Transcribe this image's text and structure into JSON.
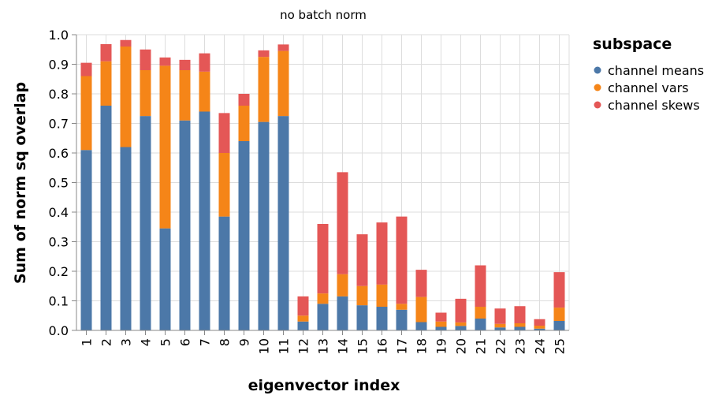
{
  "chart_data": {
    "type": "bar",
    "stacked": true,
    "title": "no batch norm",
    "xlabel": "eigenvector index",
    "ylabel": "Sum of norm sq overlap",
    "ylim": [
      0,
      1.0
    ],
    "y_ticks": [
      "0.0",
      "0.1",
      "0.2",
      "0.3",
      "0.4",
      "0.5",
      "0.6",
      "0.7",
      "0.8",
      "0.9",
      "1.0"
    ],
    "grid": true,
    "legend_title": "subspace",
    "legend_position": "right",
    "categories": [
      "1",
      "2",
      "3",
      "4",
      "5",
      "6",
      "7",
      "8",
      "9",
      "10",
      "11",
      "12",
      "13",
      "14",
      "15",
      "16",
      "17",
      "18",
      "19",
      "20",
      "21",
      "22",
      "23",
      "24",
      "25"
    ],
    "series": [
      {
        "name": "channel means",
        "color": "#4c78a8",
        "values": [
          0.61,
          0.76,
          0.62,
          0.725,
          0.345,
          0.71,
          0.74,
          0.385,
          0.64,
          0.705,
          0.725,
          0.03,
          0.09,
          0.115,
          0.085,
          0.08,
          0.07,
          0.028,
          0.012,
          0.015,
          0.04,
          0.01,
          0.012,
          0.006,
          0.032
        ]
      },
      {
        "name": "channel vars",
        "color": "#f58518",
        "values": [
          0.25,
          0.15,
          0.34,
          0.155,
          0.55,
          0.17,
          0.135,
          0.215,
          0.12,
          0.22,
          0.22,
          0.02,
          0.035,
          0.075,
          0.065,
          0.075,
          0.02,
          0.085,
          0.018,
          0.012,
          0.04,
          0.012,
          0.012,
          0.01,
          0.045
        ]
      },
      {
        "name": "channel skews",
        "color": "#e45756",
        "values": [
          0.045,
          0.058,
          0.022,
          0.07,
          0.028,
          0.035,
          0.062,
          0.135,
          0.04,
          0.022,
          0.022,
          0.065,
          0.235,
          0.345,
          0.175,
          0.21,
          0.295,
          0.092,
          0.03,
          0.08,
          0.14,
          0.052,
          0.058,
          0.022,
          0.12
        ]
      }
    ]
  }
}
